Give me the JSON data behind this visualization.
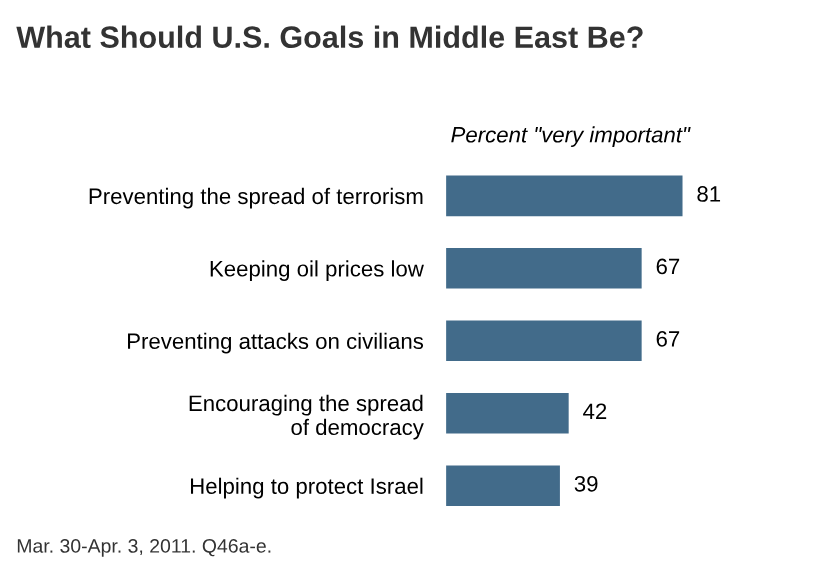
{
  "chart_data": {
    "type": "bar",
    "orientation": "horizontal",
    "title": "What Should U.S. Goals in Middle East Be?",
    "xlabel": "Percent \"very important\"",
    "categories": [
      "Preventing the spread of terrorism",
      "Keeping oil prices low",
      "Preventing attacks on civilians",
      "Encouraging the spread\nof democracy",
      "Helping to protect Israel"
    ],
    "values": [
      81,
      67,
      67,
      42,
      39
    ],
    "color": "#426b8a",
    "data_labels": true,
    "annotations": [
      "Mar. 30-Apr. 3, 2011. Q46a-e."
    ]
  }
}
